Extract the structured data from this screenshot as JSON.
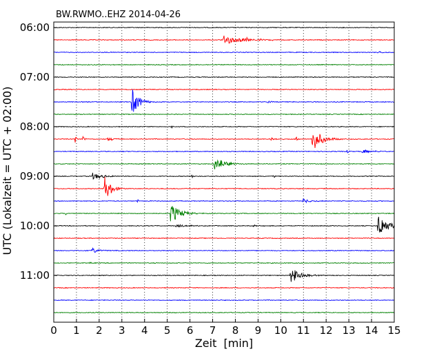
{
  "chart_data": {
    "type": "line",
    "title": "BW.RWMO..EHZ 2014-04-26",
    "xlabel": "Zeit  [min]",
    "ylabel": "UTC (Lokalzeit = UTC + 02:00)",
    "xlim": [
      0,
      15
    ],
    "x_ticks": [
      "0",
      "1",
      "2",
      "3",
      "4",
      "5",
      "6",
      "7",
      "8",
      "9",
      "10",
      "11",
      "12",
      "13",
      "14",
      "15"
    ],
    "y_ticks": [
      "06:00",
      "07:00",
      "08:00",
      "09:00",
      "10:00",
      "11:00"
    ],
    "grid": "vertical dotted",
    "trace_interval_min": 15,
    "trace_colors": [
      "#000000",
      "#ff0000",
      "#0000ff",
      "#008000"
    ],
    "traces": [
      {
        "start": "06:00",
        "events": []
      },
      {
        "start": "06:15",
        "events": [
          {
            "t": 7.5,
            "amp": 7,
            "dur": 1.5
          },
          {
            "t": 8.5,
            "amp": 2,
            "dur": 1.5
          }
        ]
      },
      {
        "start": "06:30",
        "events": [
          {
            "t": 14.3,
            "amp": 2,
            "dur": 0.3
          }
        ]
      },
      {
        "start": "06:45",
        "events": []
      },
      {
        "start": "07:00",
        "events": []
      },
      {
        "start": "07:15",
        "events": []
      },
      {
        "start": "07:30",
        "events": [
          {
            "t": 3.45,
            "amp": 20,
            "dur": 0.6
          },
          {
            "t": 9.45,
            "amp": 3,
            "dur": 0.2
          }
        ]
      },
      {
        "start": "07:45",
        "events": []
      },
      {
        "start": "08:00",
        "events": [
          {
            "t": 5.2,
            "amp": 4,
            "dur": 0.1
          }
        ]
      },
      {
        "start": "08:15",
        "events": [
          {
            "t": 0.95,
            "amp": 6,
            "dur": 0.1
          },
          {
            "t": 1.3,
            "amp": 8,
            "dur": 0.1
          },
          {
            "t": 2.3,
            "amp": 3,
            "dur": 0.8
          },
          {
            "t": 9.5,
            "amp": 4,
            "dur": 0.5
          },
          {
            "t": 10.7,
            "amp": 4,
            "dur": 0.1
          },
          {
            "t": 11.4,
            "amp": 18,
            "dur": 0.8
          }
        ]
      },
      {
        "start": "08:30",
        "events": [
          {
            "t": 12.9,
            "amp": 7,
            "dur": 0.1
          },
          {
            "t": 13.6,
            "amp": 3,
            "dur": 1.0
          }
        ]
      },
      {
        "start": "08:45",
        "events": [
          {
            "t": 7.1,
            "amp": 13,
            "dur": 0.8
          }
        ]
      },
      {
        "start": "09:00",
        "events": [
          {
            "t": 1.7,
            "amp": 5,
            "dur": 1.0
          },
          {
            "t": 6.1,
            "amp": 3,
            "dur": 0.1
          },
          {
            "t": 9.7,
            "amp": 3,
            "dur": 0.1
          }
        ]
      },
      {
        "start": "09:15",
        "events": [
          {
            "t": 2.25,
            "amp": 18,
            "dur": 0.6
          }
        ]
      },
      {
        "start": "09:30",
        "events": [
          {
            "t": 3.7,
            "amp": 4,
            "dur": 0.1
          },
          {
            "t": 11.0,
            "amp": 3,
            "dur": 0.8
          }
        ]
      },
      {
        "start": "09:45",
        "events": [
          {
            "t": 0.55,
            "amp": 4,
            "dur": 0.1
          },
          {
            "t": 5.15,
            "amp": 15,
            "dur": 0.8
          }
        ]
      },
      {
        "start": "10:00",
        "events": [
          {
            "t": 5.4,
            "amp": 3,
            "dur": 0.8
          },
          {
            "t": 8.8,
            "amp": 2,
            "dur": 0.2
          },
          {
            "t": 14.3,
            "amp": 18,
            "dur": 0.8
          }
        ]
      },
      {
        "start": "10:15",
        "events": []
      },
      {
        "start": "10:30",
        "events": [
          {
            "t": 1.7,
            "amp": 4,
            "dur": 0.6
          }
        ]
      },
      {
        "start": "10:45",
        "events": [
          {
            "t": 1.6,
            "amp": 3,
            "dur": 0.1
          }
        ]
      },
      {
        "start": "11:00",
        "events": [
          {
            "t": 10.45,
            "amp": 14,
            "dur": 0.8
          }
        ]
      },
      {
        "start": "11:15",
        "events": []
      },
      {
        "start": "11:30",
        "events": []
      },
      {
        "start": "11:45",
        "events": []
      }
    ]
  }
}
